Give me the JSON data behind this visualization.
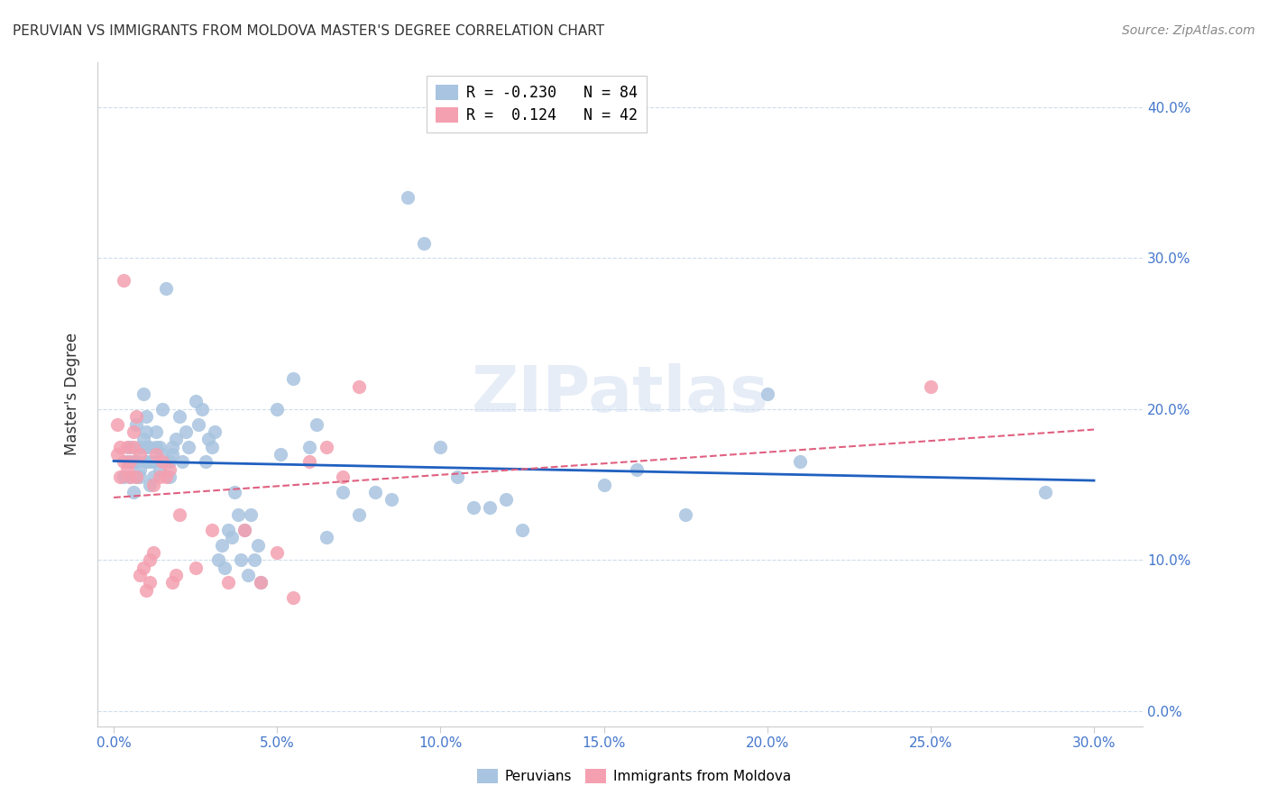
{
  "title": "PERUVIAN VS IMMIGRANTS FROM MOLDOVA MASTER'S DEGREE CORRELATION CHART",
  "source": "Source: ZipAtlas.com",
  "xlabel_ticks": [
    "0.0%",
    "5.0%",
    "10.0%",
    "15.0%",
    "20.0%",
    "25.0%",
    "30.0%"
  ],
  "xlabel_vals": [
    0.0,
    0.05,
    0.1,
    0.15,
    0.2,
    0.25,
    0.3
  ],
  "ylabel_ticks": [
    "0.0%",
    "10.0%",
    "20.0%",
    "30.0%",
    "40.0%"
  ],
  "ylabel_vals": [
    0.0,
    0.1,
    0.2,
    0.3,
    0.4
  ],
  "xlim": [
    -0.005,
    0.315
  ],
  "ylim": [
    -0.01,
    0.43
  ],
  "blue_R": -0.23,
  "blue_N": 84,
  "pink_R": 0.124,
  "pink_N": 42,
  "blue_color": "#a8c4e0",
  "pink_color": "#f4a0b0",
  "blue_line_color": "#2060c0",
  "pink_line_color": "#e06080",
  "watermark": "ZIPatlas",
  "ylabel": "Master's Degree",
  "blue_scatter_x": [
    0.003,
    0.004,
    0.005,
    0.005,
    0.006,
    0.006,
    0.007,
    0.007,
    0.007,
    0.008,
    0.008,
    0.008,
    0.009,
    0.009,
    0.01,
    0.01,
    0.01,
    0.01,
    0.011,
    0.011,
    0.011,
    0.012,
    0.012,
    0.013,
    0.013,
    0.014,
    0.014,
    0.015,
    0.015,
    0.016,
    0.017,
    0.017,
    0.018,
    0.018,
    0.019,
    0.02,
    0.021,
    0.022,
    0.023,
    0.025,
    0.026,
    0.027,
    0.028,
    0.029,
    0.03,
    0.031,
    0.032,
    0.033,
    0.034,
    0.035,
    0.036,
    0.037,
    0.038,
    0.039,
    0.04,
    0.041,
    0.042,
    0.043,
    0.044,
    0.045,
    0.05,
    0.051,
    0.055,
    0.06,
    0.062,
    0.065,
    0.07,
    0.075,
    0.08,
    0.085,
    0.09,
    0.095,
    0.1,
    0.105,
    0.11,
    0.115,
    0.12,
    0.125,
    0.15,
    0.16,
    0.175,
    0.2,
    0.21,
    0.285
  ],
  "blue_scatter_y": [
    0.155,
    0.165,
    0.175,
    0.155,
    0.145,
    0.165,
    0.155,
    0.165,
    0.19,
    0.155,
    0.16,
    0.175,
    0.18,
    0.21,
    0.175,
    0.165,
    0.185,
    0.195,
    0.15,
    0.165,
    0.175,
    0.155,
    0.165,
    0.175,
    0.185,
    0.16,
    0.175,
    0.17,
    0.2,
    0.28,
    0.165,
    0.155,
    0.17,
    0.175,
    0.18,
    0.195,
    0.165,
    0.185,
    0.175,
    0.205,
    0.19,
    0.2,
    0.165,
    0.18,
    0.175,
    0.185,
    0.1,
    0.11,
    0.095,
    0.12,
    0.115,
    0.145,
    0.13,
    0.1,
    0.12,
    0.09,
    0.13,
    0.1,
    0.11,
    0.085,
    0.2,
    0.17,
    0.22,
    0.175,
    0.19,
    0.115,
    0.145,
    0.13,
    0.145,
    0.14,
    0.34,
    0.31,
    0.175,
    0.155,
    0.135,
    0.135,
    0.14,
    0.12,
    0.15,
    0.16,
    0.13,
    0.21,
    0.165,
    0.145
  ],
  "pink_scatter_x": [
    0.001,
    0.001,
    0.002,
    0.002,
    0.003,
    0.003,
    0.004,
    0.004,
    0.005,
    0.005,
    0.006,
    0.006,
    0.007,
    0.007,
    0.008,
    0.008,
    0.009,
    0.01,
    0.011,
    0.011,
    0.012,
    0.012,
    0.013,
    0.014,
    0.015,
    0.016,
    0.017,
    0.018,
    0.019,
    0.02,
    0.025,
    0.03,
    0.035,
    0.04,
    0.045,
    0.05,
    0.055,
    0.06,
    0.065,
    0.07,
    0.075,
    0.25
  ],
  "pink_scatter_y": [
    0.19,
    0.17,
    0.155,
    0.175,
    0.165,
    0.285,
    0.16,
    0.175,
    0.155,
    0.165,
    0.185,
    0.175,
    0.155,
    0.195,
    0.17,
    0.09,
    0.095,
    0.08,
    0.085,
    0.1,
    0.105,
    0.15,
    0.17,
    0.155,
    0.165,
    0.155,
    0.16,
    0.085,
    0.09,
    0.13,
    0.095,
    0.12,
    0.085,
    0.12,
    0.085,
    0.105,
    0.075,
    0.165,
    0.175,
    0.155,
    0.215,
    0.215
  ]
}
